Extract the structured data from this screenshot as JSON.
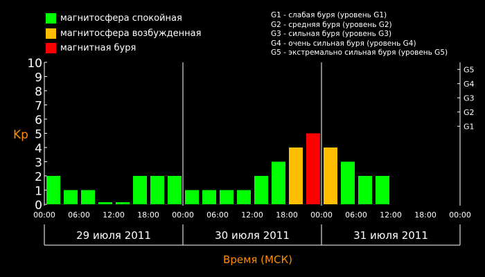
{
  "legend": [
    {
      "label": "магнитосфера спокойная",
      "color": "#00ff00"
    },
    {
      "label": "магнитосфера возбужденная",
      "color": "#ffbf00"
    },
    {
      "label": "магнитная буря",
      "color": "#ff0000"
    }
  ],
  "storm_levels": [
    "G1 - слабая буря (уровень G1)",
    "G2 - средняя буря (уровень G2)",
    "G3 - сильная буря (уровень G3)",
    "G4 - очень сильная буря (уровень G4)",
    "G5 - экстремально сильная буря (уровень G5)"
  ],
  "colors": {
    "quiet": "#00ff00",
    "active": "#ffbf00",
    "storm": "#ff0000",
    "axis_label": "#ff8c00"
  },
  "chart_data": {
    "type": "bar",
    "ylabel": "Kp",
    "xlabel": "Время (МСК)",
    "ylim": [
      0,
      10
    ],
    "yticks": [
      "0",
      "1",
      "2",
      "3",
      "4",
      "5",
      "6",
      "7",
      "8",
      "9",
      "10"
    ],
    "right_ticks": [
      {
        "label": "G1",
        "kp": 5
      },
      {
        "label": "G2",
        "kp": 6
      },
      {
        "label": "G3",
        "kp": 7
      },
      {
        "label": "G4",
        "kp": 8
      },
      {
        "label": "G5",
        "kp": 9
      }
    ],
    "time_ticks": [
      "00:00",
      "06:00",
      "12:00",
      "18:00",
      "00:00",
      "06:00",
      "12:00",
      "18:00",
      "00:00",
      "06:00",
      "12:00",
      "18:00",
      "00:00"
    ],
    "days": [
      "29 июля 2011",
      "30 июля 2011",
      "31 июля 2011"
    ],
    "values": [
      2,
      1,
      1,
      0.15,
      0.15,
      2,
      2,
      2,
      1,
      1,
      1,
      1,
      2,
      3,
      4,
      5,
      4,
      3,
      2,
      2,
      null,
      null,
      null,
      null
    ],
    "status": [
      "quiet",
      "quiet",
      "quiet",
      "quiet",
      "quiet",
      "quiet",
      "quiet",
      "quiet",
      "quiet",
      "quiet",
      "quiet",
      "quiet",
      "quiet",
      "quiet",
      "active",
      "storm",
      "active",
      "quiet",
      "quiet",
      "quiet",
      null,
      null,
      null,
      null
    ]
  }
}
